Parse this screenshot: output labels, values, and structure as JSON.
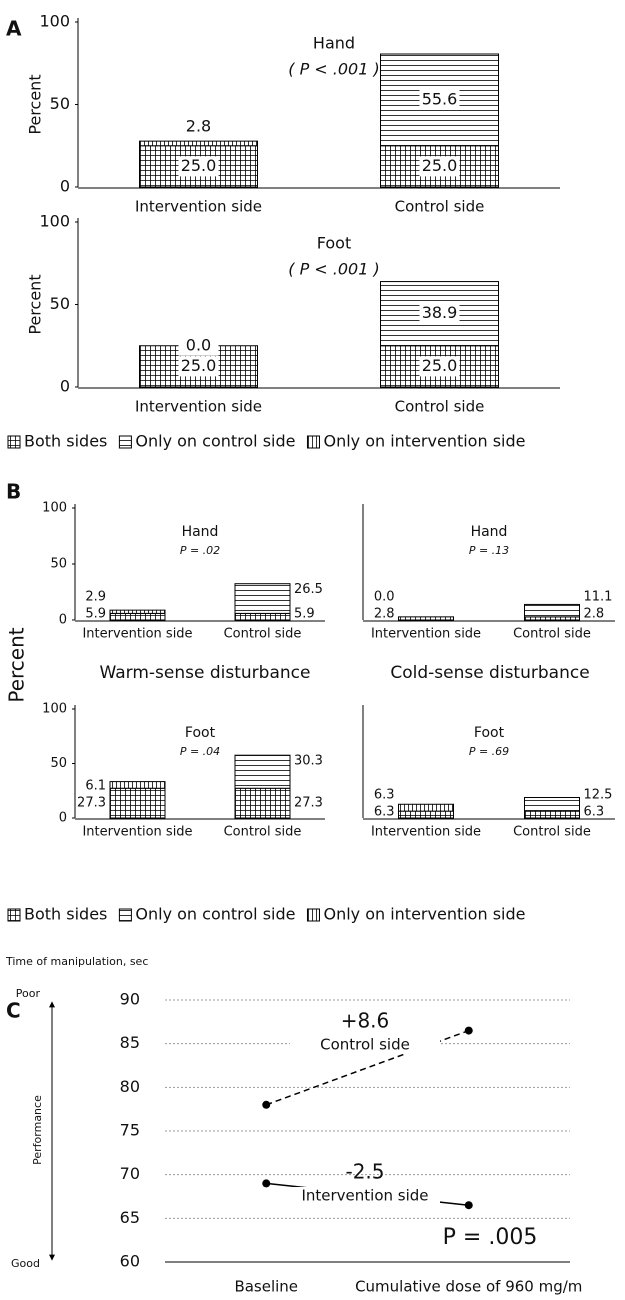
{
  "chart_data": [
    {
      "type": "stacked_bar",
      "panel_label": "A",
      "y_label": "Percent",
      "categories": [
        "Intervention side",
        "Control side"
      ],
      "ylim": [
        0,
        100
      ],
      "yticks": [
        0,
        50,
        100
      ],
      "legend": [
        {
          "name": "Both sides",
          "pattern": "grid"
        },
        {
          "name": "Only on control side",
          "pattern": "horizontal"
        },
        {
          "name": "Only on intervention side",
          "pattern": "vertical"
        }
      ],
      "subplots": [
        {
          "title": "Hand",
          "subtitle": "( P < .001 )",
          "series": [
            {
              "values": [
                25,
                25
              ],
              "value_labels": [
                "25.0",
                "25.0"
              ]
            },
            {
              "values": [
                null,
                55.6
              ]
            },
            {
              "values": [
                2.8,
                null
              ]
            }
          ]
        },
        {
          "title": "Foot",
          "subtitle": "( P < .001 )",
          "series": [
            {
              "values": [
                25,
                25
              ],
              "value_labels": [
                "25.0",
                "25.0"
              ]
            },
            {
              "values": [
                null,
                38.9
              ]
            },
            {
              "values": [
                0,
                null
              ],
              "value_labels": [
                "0.0",
                null
              ]
            }
          ]
        }
      ]
    },
    {
      "type": "stacked_bar",
      "panel_label": "B",
      "y_label": "Percent",
      "categories": [
        "Intervention side",
        "Control side"
      ],
      "ylim": [
        0,
        100
      ],
      "yticks": [
        0,
        50,
        100
      ],
      "column_titles": [
        "Warm-sense disturbance",
        "Cold-sense disturbance"
      ],
      "legend": [
        {
          "name": "Both sides",
          "pattern": "grid"
        },
        {
          "name": "Only on control side",
          "pattern": "horizontal"
        },
        {
          "name": "Only on intervention side",
          "pattern": "vertical"
        }
      ],
      "subplots": [
        {
          "title": "Hand",
          "subtitle": "P = .02",
          "series": [
            {
              "values": [
                5.9,
                5.9
              ]
            },
            {
              "values": [
                null,
                26.5
              ]
            },
            {
              "values": [
                2.9,
                null
              ]
            }
          ]
        },
        {
          "title": "Hand",
          "subtitle": "P = .13",
          "series": [
            {
              "values": [
                2.8,
                2.8
              ]
            },
            {
              "values": [
                null,
                11.1
              ]
            },
            {
              "values": [
                0,
                null
              ],
              "value_labels": [
                "0.0",
                null
              ]
            }
          ]
        },
        {
          "title": "Foot",
          "subtitle": "P = .04",
          "series": [
            {
              "values": [
                27.3,
                27.3
              ]
            },
            {
              "values": [
                null,
                30.3
              ]
            },
            {
              "values": [
                6.1,
                null
              ]
            }
          ]
        },
        {
          "title": "Foot",
          "subtitle": "P = .69",
          "series": [
            {
              "values": [
                6.3,
                6.3
              ]
            },
            {
              "values": [
                null,
                12.5
              ]
            },
            {
              "values": [
                6.3,
                null
              ]
            }
          ]
        }
      ]
    },
    {
      "type": "line",
      "panel_label": "C",
      "y_label": "Time of manipulation, sec",
      "categories": [
        "Baseline",
        "Cumulative dose of 960 mg/m"
      ],
      "ylim": [
        60,
        90
      ],
      "yticks": [
        60,
        65,
        70,
        75,
        80,
        85,
        90
      ],
      "grid": true,
      "series": [
        {
          "name": "Control side",
          "color": "#000000",
          "dashed": true,
          "values": [
            78,
            86.5
          ]
        },
        {
          "name": "Intervention side",
          "color": "#000000",
          "dashed": false,
          "values": [
            69,
            66.5
          ]
        }
      ],
      "annotations": [
        "+8.6",
        "-2.5",
        "P = .005"
      ],
      "performance": {
        "label": "Performance",
        "top": "Poor",
        "bottom": "Good"
      }
    }
  ]
}
